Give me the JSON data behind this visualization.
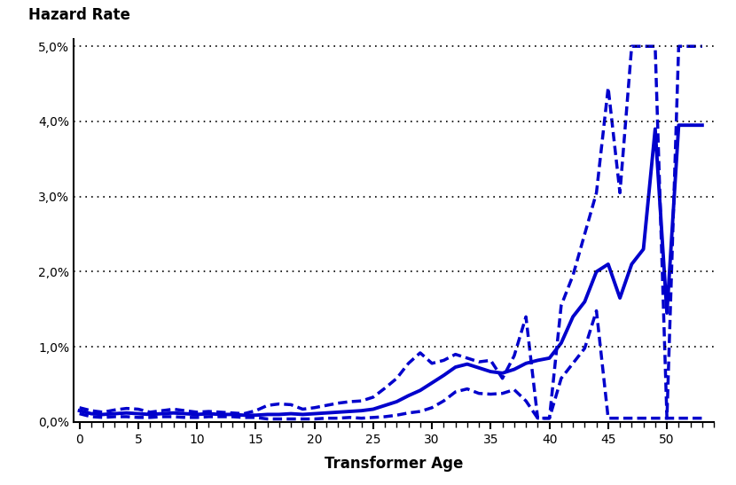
{
  "ylabel": "Hazard Rate",
  "xlabel": "Transformer Age",
  "ylim": [
    0,
    0.051
  ],
  "xlim": [
    -0.5,
    54
  ],
  "yticks": [
    0.0,
    0.01,
    0.02,
    0.03,
    0.04,
    0.05
  ],
  "xticks": [
    0,
    5,
    10,
    15,
    20,
    25,
    30,
    35,
    40,
    45,
    50
  ],
  "line_color": "#0000CC",
  "ci_color": "#0000CC",
  "background_color": "#FFFFFF",
  "solid_ages": [
    0,
    1,
    2,
    3,
    4,
    5,
    6,
    7,
    8,
    9,
    10,
    11,
    12,
    13,
    14,
    15,
    16,
    17,
    18,
    19,
    20,
    21,
    22,
    23,
    24,
    25,
    26,
    27,
    28,
    29,
    30,
    31,
    32,
    33,
    34,
    35,
    36,
    37,
    38,
    39,
    40,
    41,
    42,
    43,
    44,
    45,
    46,
    47,
    48,
    49,
    50,
    51,
    52,
    53
  ],
  "solid_vals": [
    0.0015,
    0.0011,
    0.001,
    0.0011,
    0.0012,
    0.0011,
    0.001,
    0.0011,
    0.0012,
    0.0011,
    0.001,
    0.0011,
    0.001,
    0.001,
    0.0009,
    0.0009,
    0.001,
    0.001,
    0.0011,
    0.001,
    0.0011,
    0.0012,
    0.0013,
    0.0014,
    0.0015,
    0.0017,
    0.0022,
    0.0027,
    0.0035,
    0.0042,
    0.0052,
    0.0062,
    0.0073,
    0.0077,
    0.0072,
    0.0067,
    0.0065,
    0.007,
    0.0078,
    0.0082,
    0.0085,
    0.0105,
    0.014,
    0.016,
    0.02,
    0.021,
    0.0165,
    0.021,
    0.023,
    0.039,
    0.0145,
    0.0395,
    0.0395,
    0.0395
  ],
  "upper_ages": [
    0,
    1,
    2,
    3,
    4,
    5,
    6,
    7,
    8,
    9,
    10,
    11,
    12,
    13,
    14,
    15,
    16,
    17,
    18,
    19,
    20,
    21,
    22,
    23,
    24,
    25,
    26,
    27,
    28,
    29,
    30,
    31,
    32,
    33,
    34,
    35,
    36,
    37,
    38,
    39,
    40,
    41,
    42,
    43,
    44,
    45,
    46,
    47,
    48,
    49,
    50,
    51,
    52,
    53
  ],
  "upper_vals": [
    0.0019,
    0.0015,
    0.0013,
    0.0016,
    0.0018,
    0.0017,
    0.0013,
    0.0015,
    0.0017,
    0.0015,
    0.0013,
    0.0014,
    0.0013,
    0.0012,
    0.0011,
    0.0015,
    0.0022,
    0.0024,
    0.0023,
    0.0017,
    0.0019,
    0.0022,
    0.0025,
    0.0027,
    0.0028,
    0.0033,
    0.0045,
    0.0058,
    0.0078,
    0.0092,
    0.0078,
    0.0082,
    0.009,
    0.0085,
    0.008,
    0.0082,
    0.0058,
    0.0088,
    0.014,
    0.0005,
    0.0005,
    0.0155,
    0.0195,
    0.025,
    0.0305,
    0.0445,
    0.0305,
    0.05,
    0.05,
    0.05,
    0.0005,
    0.05,
    0.05,
    0.05
  ],
  "lower_ages": [
    0,
    1,
    2,
    3,
    4,
    5,
    6,
    7,
    8,
    9,
    10,
    11,
    12,
    13,
    14,
    15,
    16,
    17,
    18,
    19,
    20,
    21,
    22,
    23,
    24,
    25,
    26,
    27,
    28,
    29,
    30,
    31,
    32,
    33,
    34,
    35,
    36,
    37,
    38,
    39,
    40,
    41,
    42,
    43,
    44,
    45,
    46,
    47,
    48,
    49,
    50,
    51,
    52,
    53
  ],
  "lower_vals": [
    0.0011,
    0.0007,
    0.0006,
    0.0007,
    0.0007,
    0.0006,
    0.0006,
    0.0007,
    0.0007,
    0.0006,
    0.0006,
    0.0007,
    0.0007,
    0.0007,
    0.0006,
    0.0006,
    0.0004,
    0.0004,
    0.0004,
    0.0004,
    0.0004,
    0.0005,
    0.0005,
    0.0006,
    0.0005,
    0.0006,
    0.0007,
    0.0009,
    0.0012,
    0.0014,
    0.0019,
    0.0028,
    0.004,
    0.0044,
    0.0038,
    0.0037,
    0.0038,
    0.0043,
    0.0028,
    0.0005,
    0.0005,
    0.0058,
    0.0078,
    0.0098,
    0.0148,
    0.0005,
    0.0005,
    0.0005,
    0.0005,
    0.0005,
    0.0005,
    0.0005,
    0.0005,
    0.0005
  ]
}
